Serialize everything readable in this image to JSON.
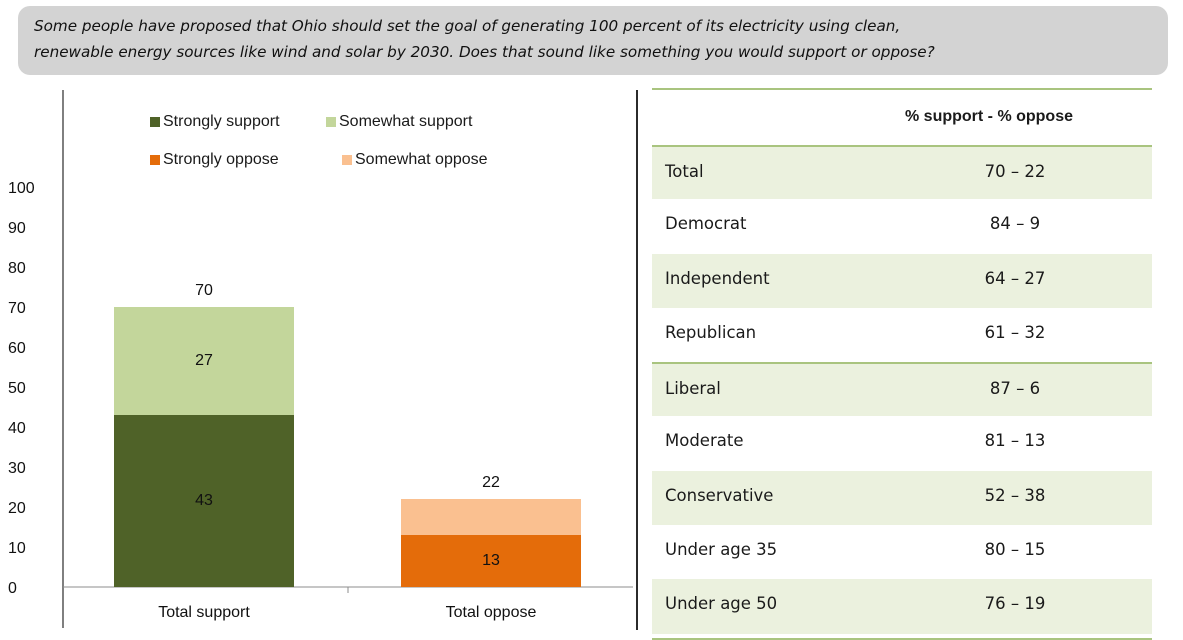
{
  "question": {
    "line1": "Some people have proposed that Ohio should set the goal of generating 100 percent of its electricity using clean,",
    "line2": "renewable energy sources like wind and solar by 2030. Does that sound like something you would support or oppose?"
  },
  "colors": {
    "strongly_support": "#4f6228",
    "somewhat_support": "#c3d69b",
    "strongly_oppose": "#e46c0a",
    "somewhat_oppose": "#fac090",
    "table_shade": "#ebf1de",
    "table_rule": "#a9c47f",
    "banner": "#d3d3d3"
  },
  "legend": {
    "strongly_support": "Strongly support",
    "somewhat_support": "Somewhat support",
    "strongly_oppose": "Strongly oppose",
    "somewhat_oppose": "Somewhat oppose"
  },
  "chart_data": {
    "type": "bar",
    "stacked": true,
    "categories": [
      "Total support",
      "Total oppose"
    ],
    "series": [
      {
        "name": "Strongly support",
        "values": [
          43,
          0
        ]
      },
      {
        "name": "Somewhat support",
        "values": [
          27,
          0
        ]
      },
      {
        "name": "Strongly oppose",
        "values": [
          0,
          13
        ]
      },
      {
        "name": "Somewhat oppose",
        "values": [
          0,
          9
        ]
      }
    ],
    "segment_labels": [
      [
        "43",
        "27"
      ],
      [
        "13",
        ""
      ]
    ],
    "totals": [
      70,
      22
    ],
    "yticks": [
      0,
      10,
      20,
      30,
      40,
      50,
      60,
      70,
      80,
      90,
      100
    ],
    "ylim": [
      0,
      100
    ],
    "legend_position": "top",
    "grid": false
  },
  "table": {
    "header": "% support - % oppose",
    "rows": [
      {
        "label": "Total",
        "value": "70 – 22"
      },
      {
        "label": "Democrat",
        "value": "84 – 9"
      },
      {
        "label": "Independent",
        "value": "64 – 27"
      },
      {
        "label": "Republican",
        "value": "61 – 32"
      },
      {
        "label": "Liberal",
        "value": "87 – 6"
      },
      {
        "label": "Moderate",
        "value": "81 – 13"
      },
      {
        "label": "Conservative",
        "value": "52 – 38"
      },
      {
        "label": "Under age 35",
        "value": "80 – 15"
      },
      {
        "label": "Under age 50",
        "value": "76 – 19"
      }
    ]
  }
}
